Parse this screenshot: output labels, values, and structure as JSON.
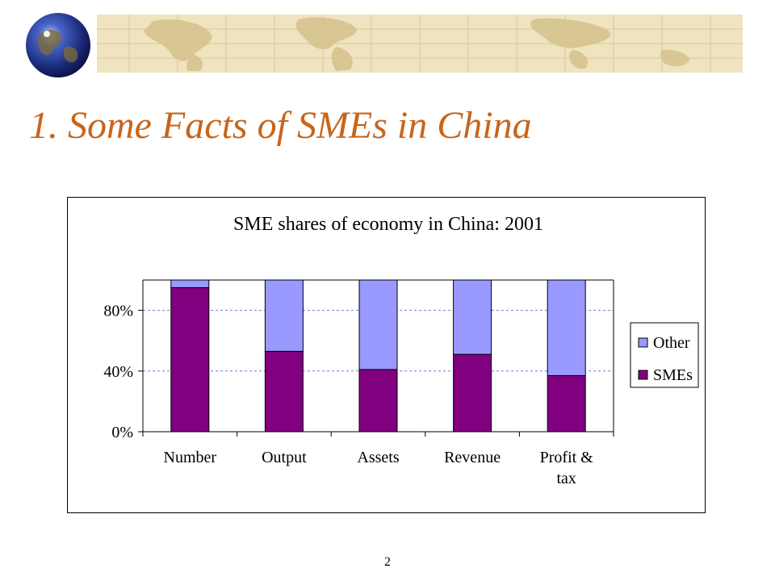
{
  "slide": {
    "title": "1. Some Facts of SMEs in China",
    "page_number": "2"
  },
  "icons": {
    "globe": "globe-icon",
    "banner": "world-map-banner"
  },
  "chart_data": {
    "type": "bar",
    "stacked": true,
    "title": "SME shares of economy in China: 2001",
    "categories": [
      "Number",
      "Output",
      "Assets",
      "Revenue",
      "Profit & tax"
    ],
    "series": [
      {
        "name": "SMEs",
        "color": "#800080",
        "values": [
          95,
          53,
          41,
          51,
          37
        ]
      },
      {
        "name": "Other",
        "color": "#9999ff",
        "values": [
          5,
          47,
          59,
          49,
          63
        ]
      }
    ],
    "ylim": [
      0,
      100
    ],
    "yticks": [
      {
        "value": 0,
        "label": "0%"
      },
      {
        "value": 40,
        "label": "40%"
      },
      {
        "value": 80,
        "label": "80%"
      }
    ],
    "grid": true,
    "legend": "right",
    "legend_order": [
      "Other",
      "SMEs"
    ]
  }
}
